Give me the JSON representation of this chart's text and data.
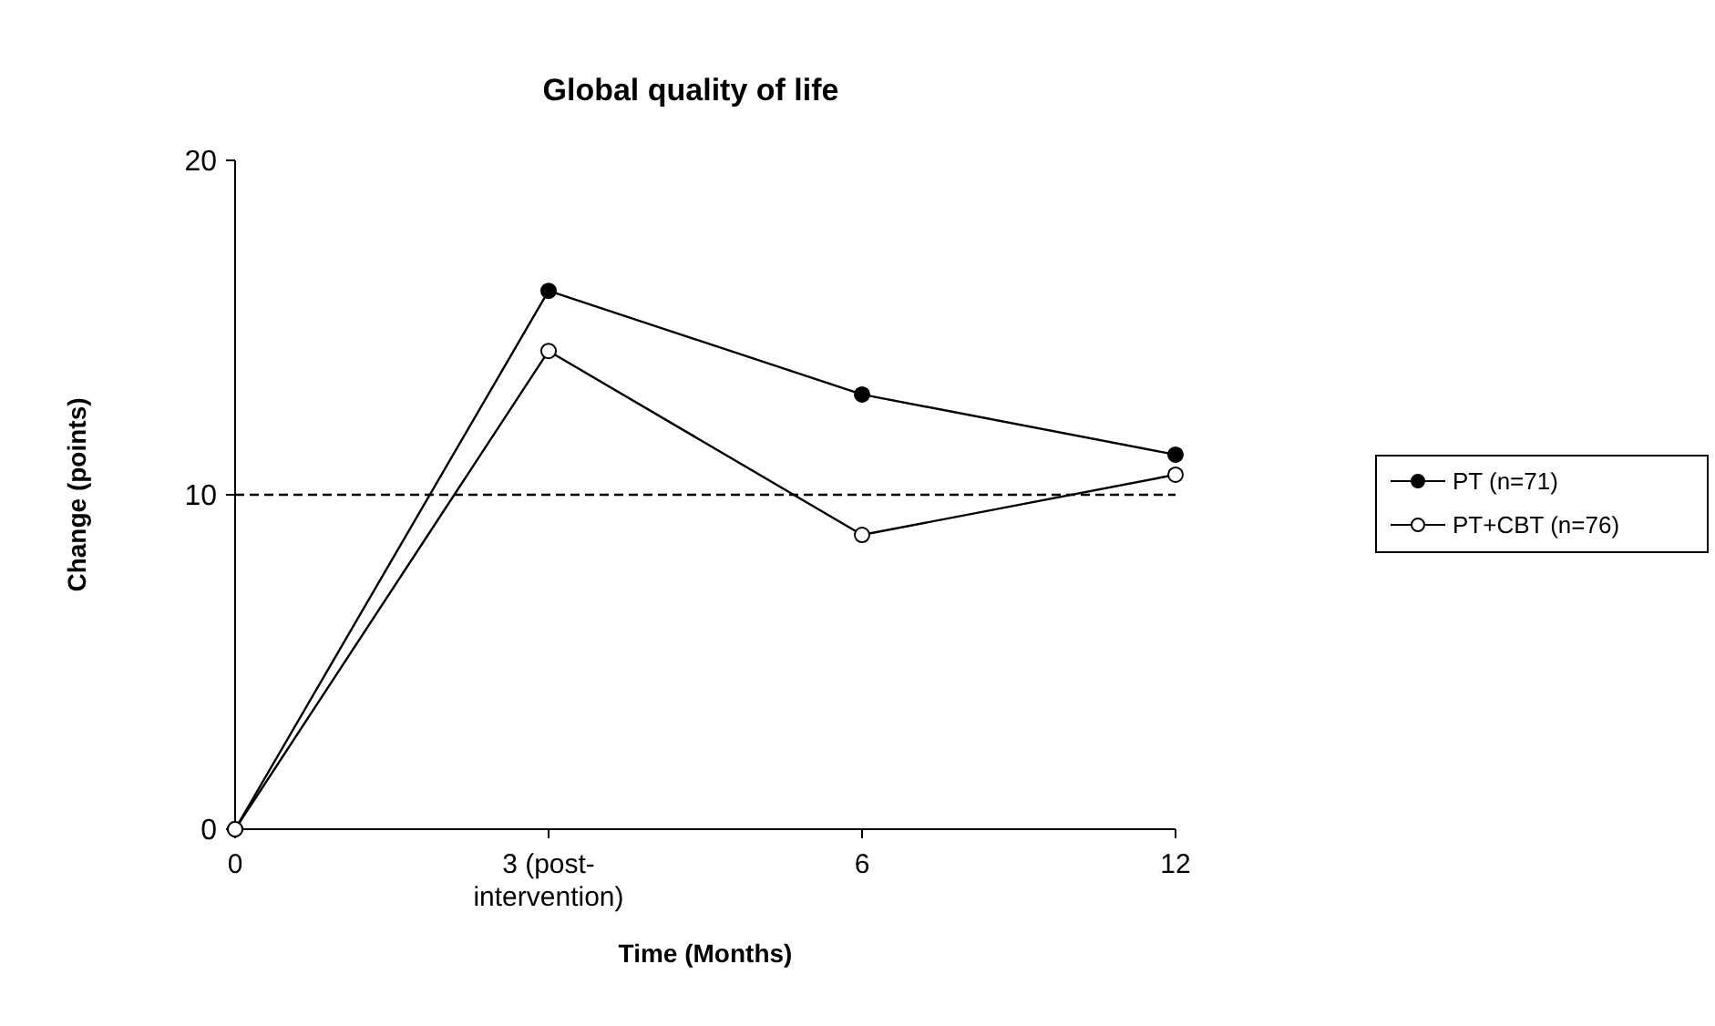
{
  "chart_data": {
    "type": "line",
    "title": "Global quality of life",
    "xlabel": "Time (Months)",
    "ylabel": "Change (points)",
    "categories": [
      "0",
      "3 (post-intervention)",
      "6",
      "12"
    ],
    "series": [
      {
        "name": "PT (n=71)",
        "color": "#000000",
        "values": [
          0,
          16.1,
          13.0,
          11.2
        ]
      },
      {
        "name": "PT+CBT (n=76)",
        "color": "#000000",
        "values": [
          0,
          14.3,
          8.8,
          10.6
        ]
      }
    ],
    "ylim": [
      0,
      20
    ],
    "yticks": [
      0,
      10,
      20
    ],
    "ref_lines": [
      {
        "axis": "y",
        "value": 10,
        "line_style": "dashed",
        "color": "#000000"
      }
    ],
    "marker": "circle",
    "grid": false,
    "legend": "right"
  }
}
